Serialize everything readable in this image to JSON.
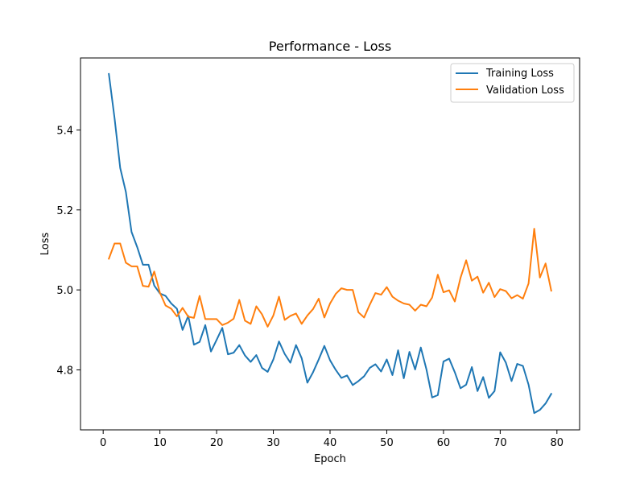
{
  "chart_data": {
    "type": "line",
    "title": "Performance - Loss",
    "xlabel": "Epoch",
    "ylabel": "Loss",
    "xlim": [
      -4,
      84
    ],
    "ylim": [
      4.65,
      5.58
    ],
    "xticks": [
      0,
      10,
      20,
      30,
      40,
      50,
      60,
      70,
      80
    ],
    "yticks": [
      4.8,
      5.0,
      5.2,
      5.4
    ],
    "ytick_labels": [
      "4.8",
      "5.0",
      "5.2",
      "5.4"
    ],
    "grid": false,
    "legend_position": "top-right",
    "x": [
      1,
      2,
      3,
      4,
      5,
      6,
      7,
      8,
      9,
      10,
      11,
      12,
      13,
      14,
      15,
      16,
      17,
      18,
      19,
      20,
      21,
      22,
      23,
      24,
      25,
      26,
      27,
      28,
      29,
      30,
      31,
      32,
      33,
      34,
      35,
      36,
      37,
      38,
      39,
      40,
      41,
      42,
      43,
      44,
      45,
      46,
      47,
      48,
      49,
      50,
      51,
      52,
      53,
      54,
      55,
      56,
      57,
      58,
      59,
      60,
      61,
      62,
      63,
      64,
      65,
      66,
      67,
      68,
      69,
      70,
      71,
      72,
      73,
      74,
      75,
      76,
      77,
      78,
      79
    ],
    "series": [
      {
        "name": "Training Loss",
        "color": "#1f77b4",
        "values": [
          5.54,
          5.43,
          5.305,
          5.245,
          5.145,
          5.107,
          5.063,
          5.063,
          5.011,
          4.991,
          4.985,
          4.966,
          4.953,
          4.9,
          4.935,
          4.863,
          4.87,
          4.912,
          4.846,
          4.875,
          4.905,
          4.839,
          4.843,
          4.862,
          4.836,
          4.82,
          4.837,
          4.805,
          4.795,
          4.826,
          4.871,
          4.84,
          4.818,
          4.862,
          4.829,
          4.768,
          4.794,
          4.826,
          4.86,
          4.824,
          4.8,
          4.78,
          4.786,
          4.762,
          4.772,
          4.784,
          4.805,
          4.814,
          4.796,
          4.826,
          4.787,
          4.849,
          4.779,
          4.845,
          4.801,
          4.856,
          4.801,
          4.731,
          4.737,
          4.821,
          4.828,
          4.794,
          4.754,
          4.763,
          4.807,
          4.747,
          4.782,
          4.73,
          4.747,
          4.844,
          4.818,
          4.772,
          4.815,
          4.81,
          4.763,
          4.692,
          4.7,
          4.716,
          4.74
        ]
      },
      {
        "name": "Validation Loss",
        "color": "#ff7f0e",
        "values": [
          5.078,
          5.116,
          5.116,
          5.068,
          5.059,
          5.059,
          5.01,
          5.008,
          5.046,
          4.993,
          4.961,
          4.953,
          4.934,
          4.955,
          4.933,
          4.93,
          4.985,
          4.927,
          4.927,
          4.927,
          4.912,
          4.918,
          4.928,
          4.975,
          4.923,
          4.915,
          4.959,
          4.939,
          4.908,
          4.936,
          4.983,
          4.925,
          4.935,
          4.941,
          4.915,
          4.936,
          4.952,
          4.978,
          4.931,
          4.966,
          4.99,
          5.004,
          5.0,
          5.0,
          4.944,
          4.931,
          4.963,
          4.992,
          4.988,
          5.007,
          4.983,
          4.973,
          4.966,
          4.963,
          4.948,
          4.963,
          4.959,
          4.981,
          5.038,
          4.994,
          4.999,
          4.971,
          5.03,
          5.074,
          5.023,
          5.033,
          4.993,
          5.018,
          4.982,
          5.002,
          4.997,
          4.979,
          4.987,
          4.978,
          5.016,
          5.153,
          5.031,
          5.066,
          4.998
        ]
      }
    ]
  }
}
